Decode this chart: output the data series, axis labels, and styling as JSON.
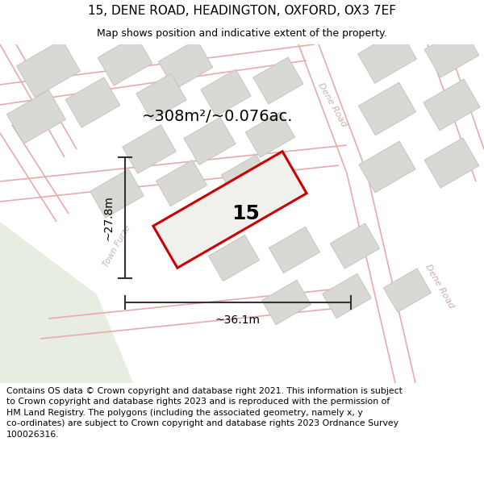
{
  "title_line1": "15, DENE ROAD, HEADINGTON, OXFORD, OX3 7EF",
  "title_line2": "Map shows position and indicative extent of the property.",
  "area_label": "~308m²/~0.076ac.",
  "property_number": "15",
  "width_label": "~36.1m",
  "height_label": "~27.8m",
  "footer_text": "Contains OS data © Crown copyright and database right 2021. This information is subject\nto Crown copyright and database rights 2023 and is reproduced with the permission of\nHM Land Registry. The polygons (including the associated geometry, namely x, y\nco-ordinates) are subject to Crown copyright and database rights 2023 Ordnance Survey\n100026316.",
  "map_bg": "#f2f2ee",
  "road_line_color": "#e8aaaa",
  "building_fill": "#d8d8d4",
  "building_edge": "#c4c4c0",
  "property_fill": "#f0f0ec",
  "property_edge": "#cc0000",
  "road_label_color": "#c8b0b0",
  "green_area": "#e8ede2",
  "dim_color": "#333333",
  "title_fontsize": 11,
  "subtitle_fontsize": 9,
  "area_fontsize": 14,
  "prop_num_fontsize": 18,
  "dim_fontsize": 10,
  "road_label_fontsize": 8,
  "footer_fontsize": 7.8
}
